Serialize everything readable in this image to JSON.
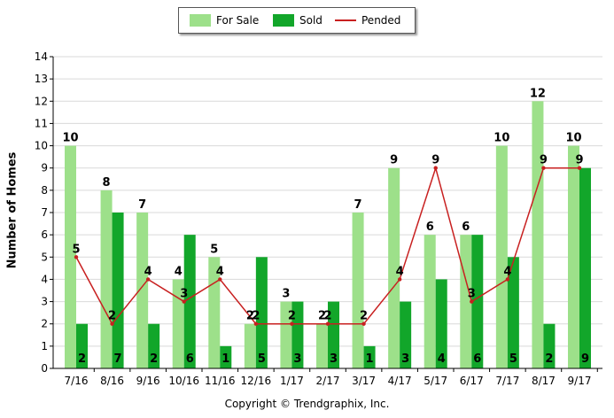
{
  "legend": {
    "for_sale_label": "For Sale",
    "sold_label": "Sold",
    "pended_label": "Pended"
  },
  "colors": {
    "for_sale": "#9de08a",
    "sold": "#12a62a",
    "pended": "#c82020",
    "grid": "#d9d9d9",
    "axis": "#000000"
  },
  "footer": {
    "copyright": "Copyright © Trendgraphix, Inc."
  },
  "chart_data": {
    "type": "bar",
    "title": "",
    "xlabel": "",
    "ylabel": "Number of Homes",
    "ylim": [
      0,
      14
    ],
    "yticks": [
      0,
      1,
      2,
      3,
      4,
      5,
      6,
      7,
      8,
      9,
      10,
      11,
      12,
      13,
      14
    ],
    "grid": true,
    "legend_position": "top-center",
    "categories": [
      "7/16",
      "8/16",
      "9/16",
      "10/16",
      "11/16",
      "12/16",
      "1/17",
      "2/17",
      "3/17",
      "4/17",
      "5/17",
      "6/17",
      "7/17",
      "8/17",
      "9/17"
    ],
    "series": [
      {
        "name": "For Sale",
        "kind": "bar",
        "values": [
          10,
          8,
          7,
          4,
          5,
          2,
          3,
          2,
          7,
          9,
          6,
          6,
          10,
          12,
          10
        ]
      },
      {
        "name": "Sold",
        "kind": "bar",
        "values": [
          2,
          7,
          2,
          6,
          1,
          5,
          3,
          3,
          1,
          3,
          4,
          6,
          5,
          2,
          9
        ]
      },
      {
        "name": "Pended",
        "kind": "line",
        "values": [
          5,
          2,
          4,
          3,
          4,
          2,
          2,
          2,
          2,
          4,
          9,
          3,
          4,
          9,
          9
        ]
      }
    ]
  }
}
